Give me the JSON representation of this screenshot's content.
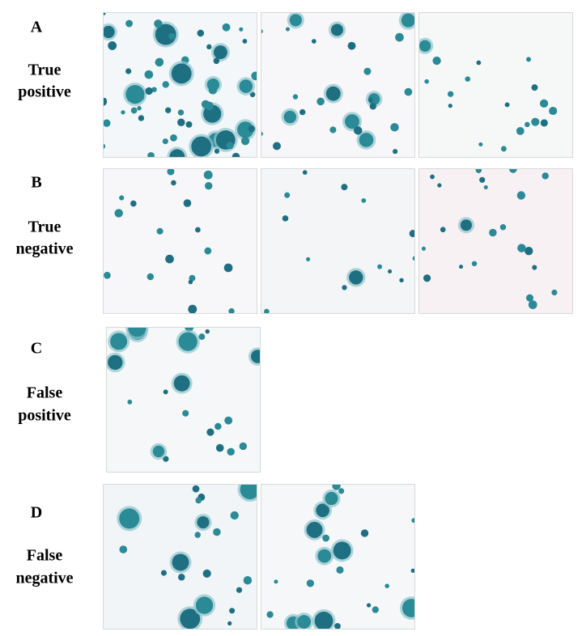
{
  "rows": [
    {
      "letter": "A",
      "label": [
        "True",
        "positive"
      ]
    },
    {
      "letter": "B",
      "label": [
        "True",
        "negative"
      ]
    },
    {
      "letter": "C",
      "label": [
        "False",
        "positive"
      ]
    },
    {
      "letter": "D",
      "label": [
        "False",
        "negative"
      ]
    }
  ]
}
